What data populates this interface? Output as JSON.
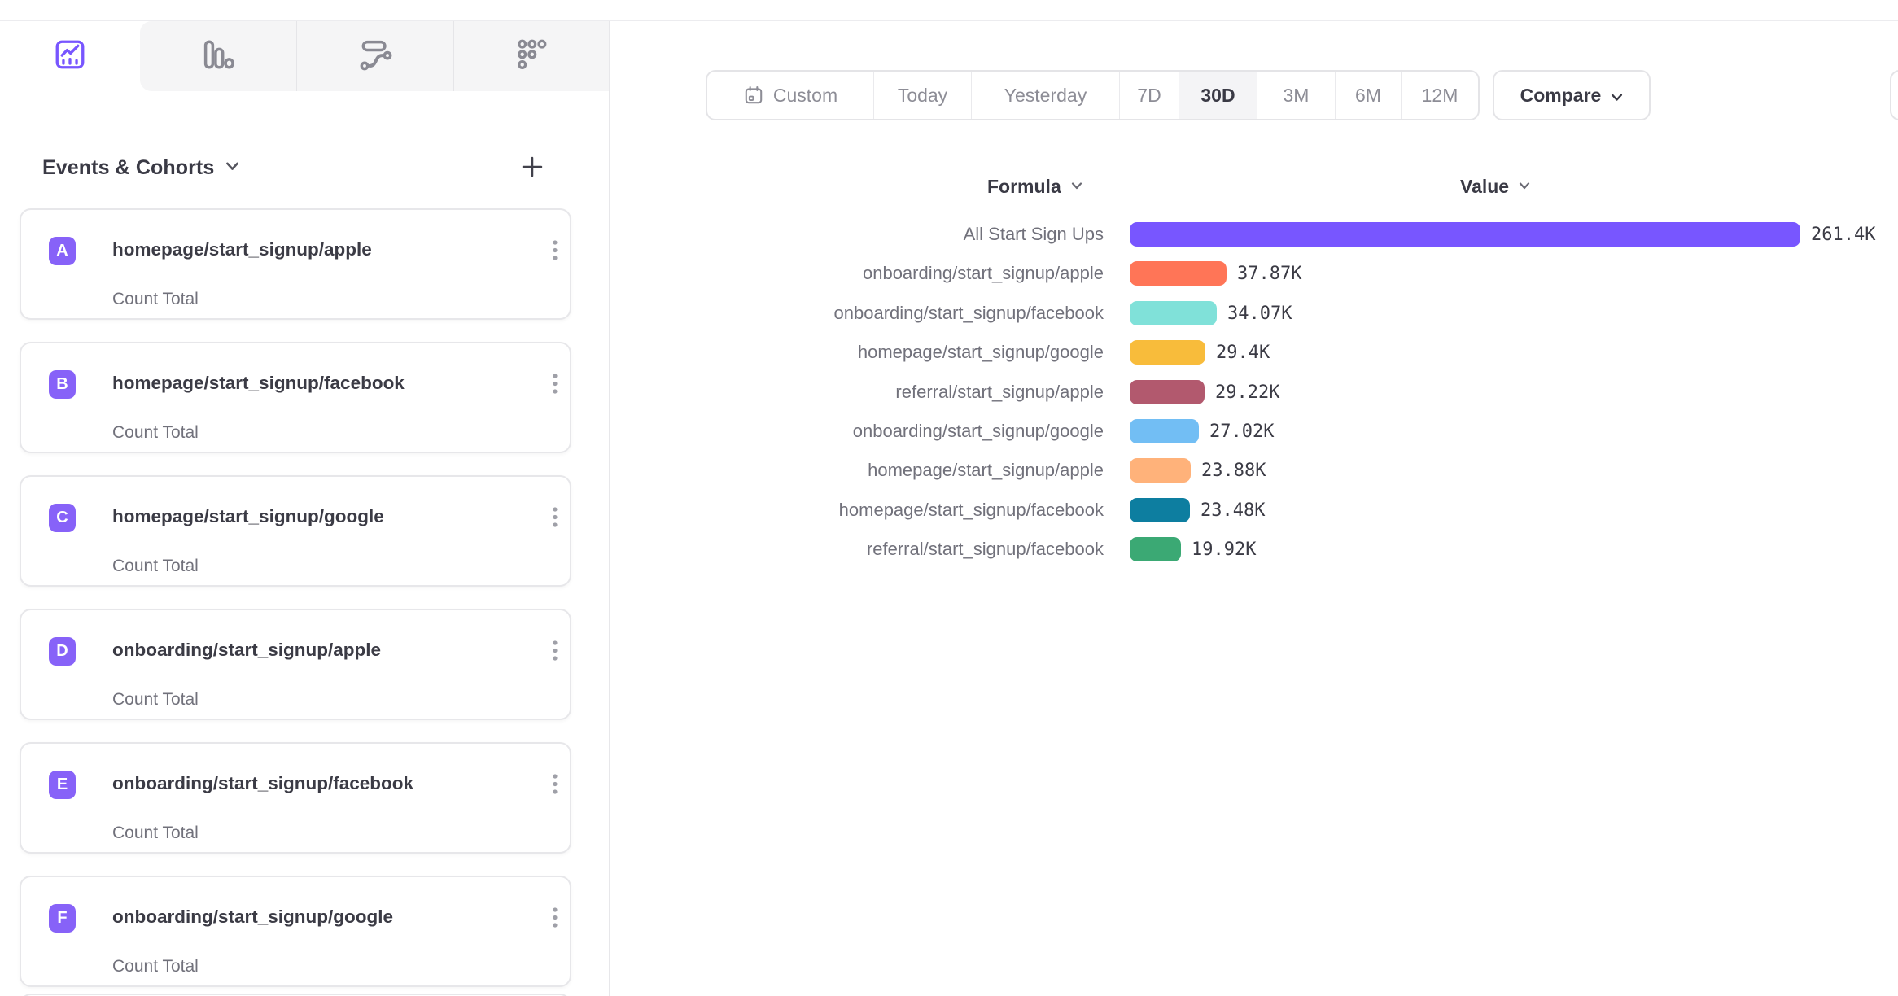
{
  "accent": "#7856ff",
  "tabs": [
    {
      "name": "insights",
      "active": true
    },
    {
      "name": "bar-chart",
      "active": false
    },
    {
      "name": "flows",
      "active": false
    },
    {
      "name": "retention",
      "active": false
    }
  ],
  "sidebar": {
    "title": "Events & Cohorts",
    "badge_color": "#8762f8",
    "items": [
      {
        "badge": "A",
        "name": "homepage/start_signup/apple",
        "metric": "Count Total"
      },
      {
        "badge": "B",
        "name": "homepage/start_signup/facebook",
        "metric": "Count Total"
      },
      {
        "badge": "C",
        "name": "homepage/start_signup/google",
        "metric": "Count Total"
      },
      {
        "badge": "D",
        "name": "onboarding/start_signup/apple",
        "metric": "Count Total"
      },
      {
        "badge": "E",
        "name": "onboarding/start_signup/facebook",
        "metric": "Count Total"
      },
      {
        "badge": "F",
        "name": "onboarding/start_signup/google",
        "metric": "Count Total"
      }
    ]
  },
  "toolbar": {
    "date_ranges": [
      "Custom",
      "Today",
      "Yesterday",
      "7D",
      "30D",
      "3M",
      "6M",
      "12M"
    ],
    "active_range": "30D",
    "compare_label": "Compare"
  },
  "chart_data": {
    "type": "bar",
    "orientation": "horizontal",
    "columns": {
      "formula": "Formula",
      "value": "Value"
    },
    "max_value": 261.4,
    "rows": [
      {
        "label": "All Start Sign Ups",
        "value": 261.4,
        "value_text": "261.4K",
        "color": "#7856ff"
      },
      {
        "label": "onboarding/start_signup/apple",
        "value": 37.87,
        "value_text": "37.87K",
        "color": "#ff7557"
      },
      {
        "label": "onboarding/start_signup/facebook",
        "value": 34.07,
        "value_text": "34.07K",
        "color": "#80e1d9"
      },
      {
        "label": "homepage/start_signup/google",
        "value": 29.4,
        "value_text": "29.4K",
        "color": "#f8bc3b"
      },
      {
        "label": "referral/start_signup/apple",
        "value": 29.22,
        "value_text": "29.22K",
        "color": "#b2596e"
      },
      {
        "label": "onboarding/start_signup/google",
        "value": 27.02,
        "value_text": "27.02K",
        "color": "#72bef4"
      },
      {
        "label": "homepage/start_signup/apple",
        "value": 23.88,
        "value_text": "23.88K",
        "color": "#ffb27a"
      },
      {
        "label": "homepage/start_signup/facebook",
        "value": 23.48,
        "value_text": "23.48K",
        "color": "#0d7ea0"
      },
      {
        "label": "referral/start_signup/facebook",
        "value": 19.92,
        "value_text": "19.92K",
        "color": "#3ba974"
      }
    ]
  }
}
